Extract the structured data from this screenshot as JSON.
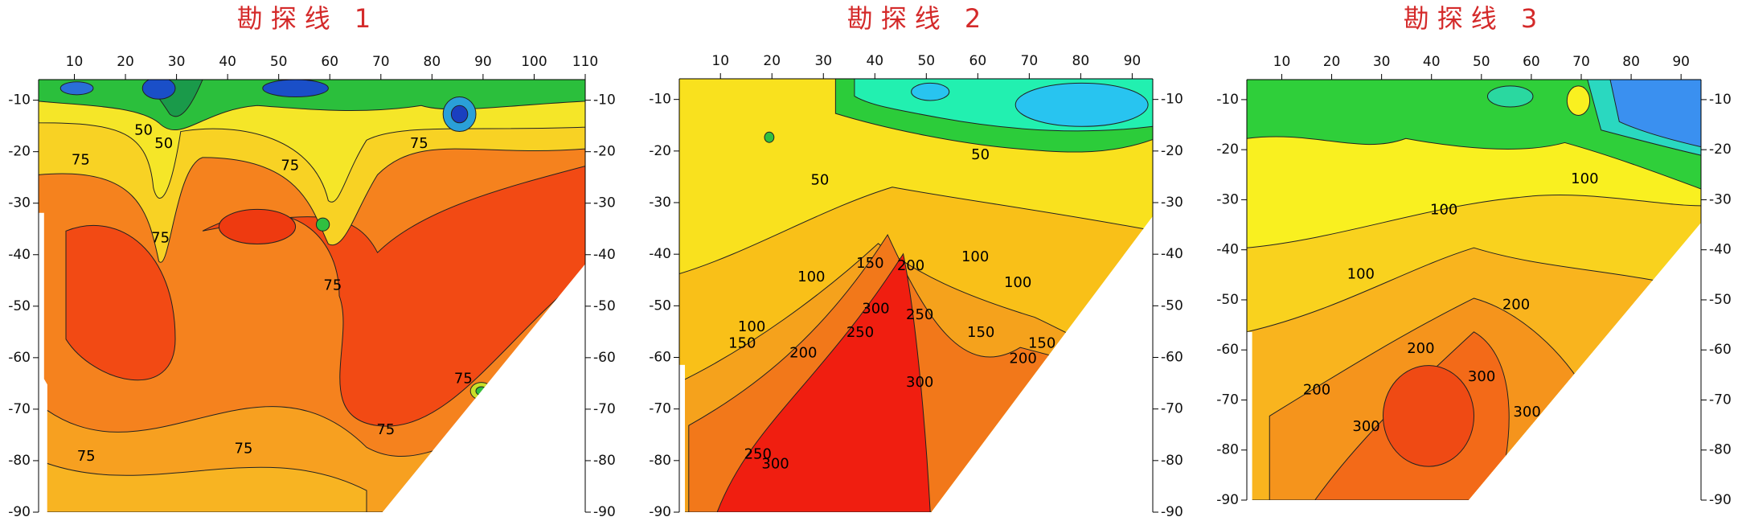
{
  "chart_data": [
    {
      "type": "contour",
      "title": "勘探线 1",
      "xlim": [
        3,
        110
      ],
      "xticks": [
        10,
        20,
        30,
        40,
        50,
        60,
        70,
        80,
        90,
        100,
        110
      ],
      "ylim": [
        -90,
        -6
      ],
      "yticks": [
        -10,
        -20,
        -30,
        -40,
        -50,
        -60,
        -70,
        -80,
        -90
      ],
      "contour_labels": [
        75,
        50,
        50,
        75,
        75,
        75,
        75,
        75,
        75,
        75,
        75
      ]
    },
    {
      "type": "contour",
      "title": "勘探线 2",
      "xlim": [
        2,
        94
      ],
      "xticks": [
        10,
        20,
        30,
        40,
        50,
        60,
        70,
        80,
        90
      ],
      "ylim": [
        -90,
        -6
      ],
      "yticks": [
        -10,
        -20,
        -30,
        -40,
        -50,
        -60,
        -70,
        -80,
        -90
      ],
      "contour_labels": [
        50,
        50,
        100,
        150,
        200,
        100,
        100,
        150,
        100,
        150,
        200,
        250,
        300,
        250,
        300,
        150,
        200,
        250,
        300
      ]
    },
    {
      "type": "contour",
      "title": "勘探线 3",
      "xlim": [
        3,
        94
      ],
      "xticks": [
        10,
        20,
        30,
        40,
        50,
        60,
        70,
        80,
        90
      ],
      "ylim": [
        -90,
        -6
      ],
      "yticks": [
        -10,
        -20,
        -30,
        -40,
        -50,
        -60,
        -70,
        -80,
        -90
      ],
      "contour_labels": [
        100,
        100,
        100,
        200,
        200,
        300,
        300,
        200,
        300
      ]
    }
  ]
}
